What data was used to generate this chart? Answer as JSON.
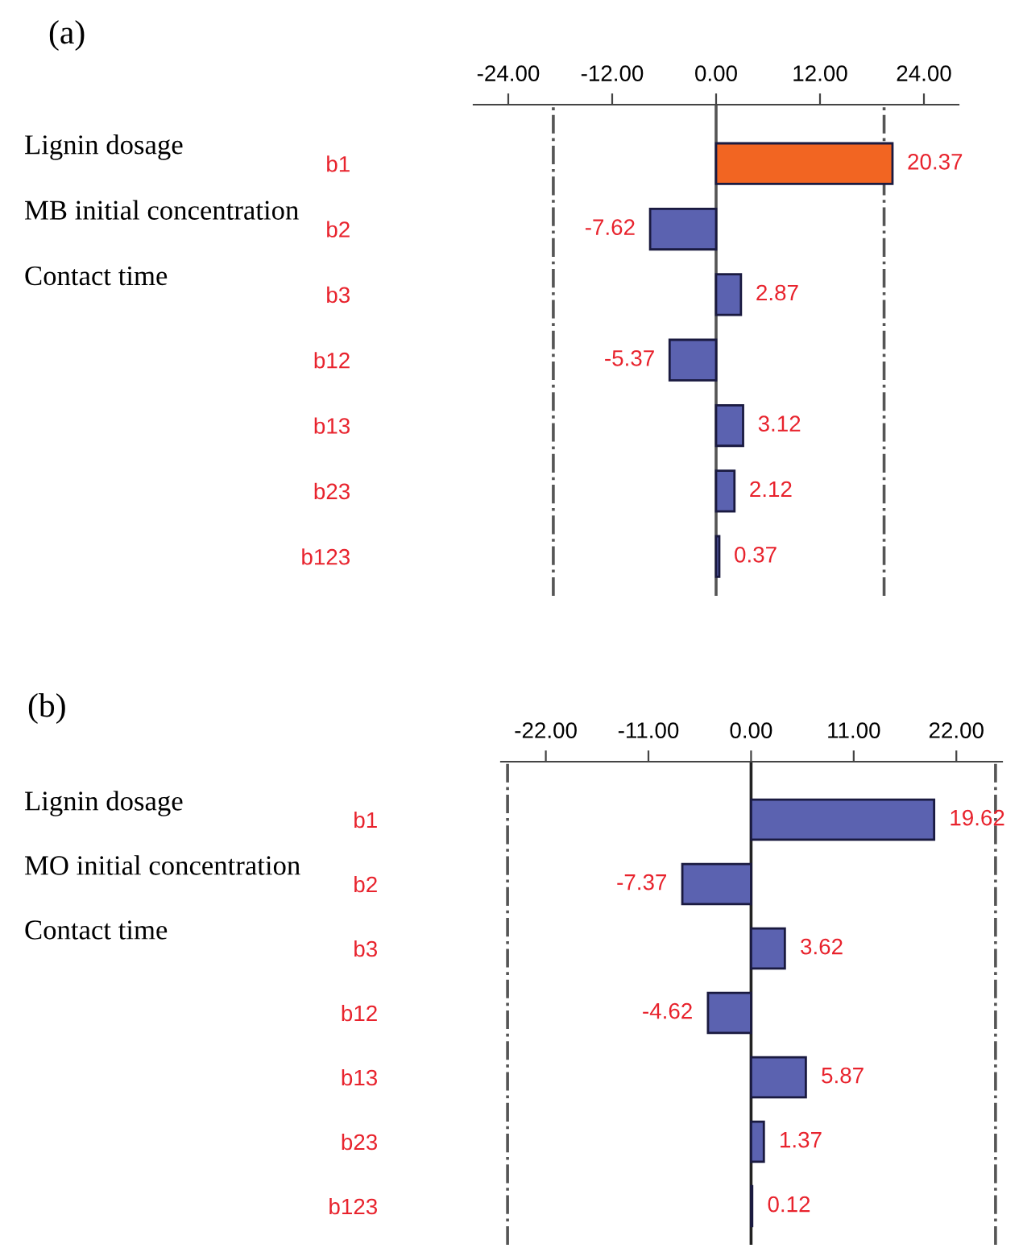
{
  "chart_data": [
    {
      "type": "bar",
      "orientation": "horizontal",
      "categories": [
        "b1",
        "b2",
        "b3",
        "b12",
        "b13",
        "b23",
        "b123"
      ],
      "values": [
        20.37,
        -7.62,
        2.87,
        -5.37,
        3.12,
        2.12,
        0.37
      ],
      "colors": [
        "#f26522",
        "#5b62b0",
        "#5b62b0",
        "#5b62b0",
        "#5b62b0",
        "#5b62b0",
        "#5b62b0"
      ],
      "xlim": [
        -28,
        28
      ],
      "xticks": [
        {
          "value": -24,
          "label": "-24.00"
        },
        {
          "value": -12,
          "label": "-12.00"
        },
        {
          "value": 0,
          "label": "0.00"
        },
        {
          "value": 12,
          "label": "12.00"
        },
        {
          "value": 24,
          "label": "24.00"
        }
      ],
      "data_labels": true,
      "grid": false,
      "legend": false,
      "ref_lines": [
        {
          "axis": "x",
          "value": 0,
          "color": "#555555",
          "line_style": "solid"
        },
        {
          "axis": "x",
          "value": -18.8,
          "color": "#555555",
          "line_style": "dashdot"
        },
        {
          "axis": "x",
          "value": 19.4,
          "color": "#555555",
          "line_style": "dashdot"
        }
      ],
      "annotations": [
        "(a)",
        "Lignin dosage",
        "MB initial concentration",
        "Contact time"
      ]
    },
    {
      "type": "bar",
      "orientation": "horizontal",
      "categories": [
        "b1",
        "b2",
        "b3",
        "b12",
        "b13",
        "b23",
        "b123"
      ],
      "values": [
        19.62,
        -7.37,
        3.62,
        -4.62,
        5.87,
        1.37,
        0.12
      ],
      "colors": [
        "#5b62b0",
        "#5b62b0",
        "#5b62b0",
        "#5b62b0",
        "#5b62b0",
        "#5b62b0",
        "#5b62b0"
      ],
      "xlim": [
        -26.8,
        26.9
      ],
      "xticks": [
        {
          "value": -22,
          "label": "-22.00"
        },
        {
          "value": -11,
          "label": "-11.00"
        },
        {
          "value": 0,
          "label": "0.00"
        },
        {
          "value": 11,
          "label": "11.00"
        },
        {
          "value": 22,
          "label": "22.00"
        }
      ],
      "data_labels": true,
      "grid": false,
      "legend": false,
      "ref_lines": [
        {
          "axis": "x",
          "value": 0,
          "color": "#222222",
          "line_style": "solid"
        },
        {
          "axis": "x",
          "value": -26.1,
          "color": "#555555",
          "line_style": "dashdot"
        },
        {
          "axis": "x",
          "value": 26.2,
          "color": "#555555",
          "line_style": "dashdot"
        }
      ],
      "annotations": [
        "(b)",
        "Lignin dosage",
        "MO initial concentration",
        "Contact time"
      ]
    }
  ]
}
